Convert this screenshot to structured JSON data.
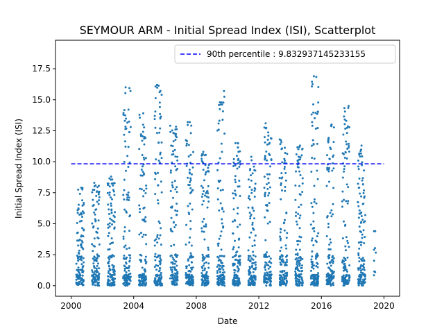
{
  "chart_data": {
    "type": "scatter",
    "title": "SEYMOUR ARM - Initial Spread Index (ISI), Scatterplot",
    "xlabel": "Date",
    "ylabel": "Initial Spread Index (ISI)",
    "xlim": [
      1999.0,
      2021.0
    ],
    "ylim": [
      -0.85,
      19.8
    ],
    "x_ticks": [
      2000,
      2004,
      2008,
      2012,
      2016,
      2020
    ],
    "y_ticks": [
      0.0,
      2.5,
      5.0,
      7.5,
      10.0,
      12.5,
      15.0,
      17.5
    ],
    "y_tick_labels": [
      "0.0",
      "2.5",
      "5.0",
      "7.5",
      "10.0",
      "12.5",
      "15.0",
      "17.5"
    ],
    "grid": false,
    "legend_position": "top-right",
    "point_color": "#1f77b4",
    "reference_line": {
      "label": "90th percentile : 9.832937145233155",
      "value": 9.832937145233155,
      "x_range": [
        2000,
        2020
      ],
      "style": "dashed",
      "color": "#0000ff"
    },
    "seasons": [
      {
        "year": 2000,
        "max": 7.9
      },
      {
        "year": 2001,
        "max": 8.3
      },
      {
        "year": 2002,
        "max": 8.8
      },
      {
        "year": 2003,
        "max": 16.0
      },
      {
        "year": 2004,
        "max": 13.9
      },
      {
        "year": 2005,
        "max": 16.2
      },
      {
        "year": 2006,
        "max": 12.9
      },
      {
        "year": 2007,
        "max": 13.2
      },
      {
        "year": 2008,
        "max": 10.8
      },
      {
        "year": 2009,
        "max": 15.7
      },
      {
        "year": 2010,
        "max": 11.5
      },
      {
        "year": 2011,
        "max": 10.4
      },
      {
        "year": 2012,
        "max": 13.1
      },
      {
        "year": 2013,
        "max": 11.8
      },
      {
        "year": 2014,
        "max": 11.3
      },
      {
        "year": 2015,
        "max": 16.9
      },
      {
        "year": 2016,
        "max": 13.0
      },
      {
        "year": 2017,
        "max": 14.5
      },
      {
        "year": 2018,
        "max": 11.3
      },
      {
        "year": 2019,
        "max": 4.4
      }
    ]
  }
}
